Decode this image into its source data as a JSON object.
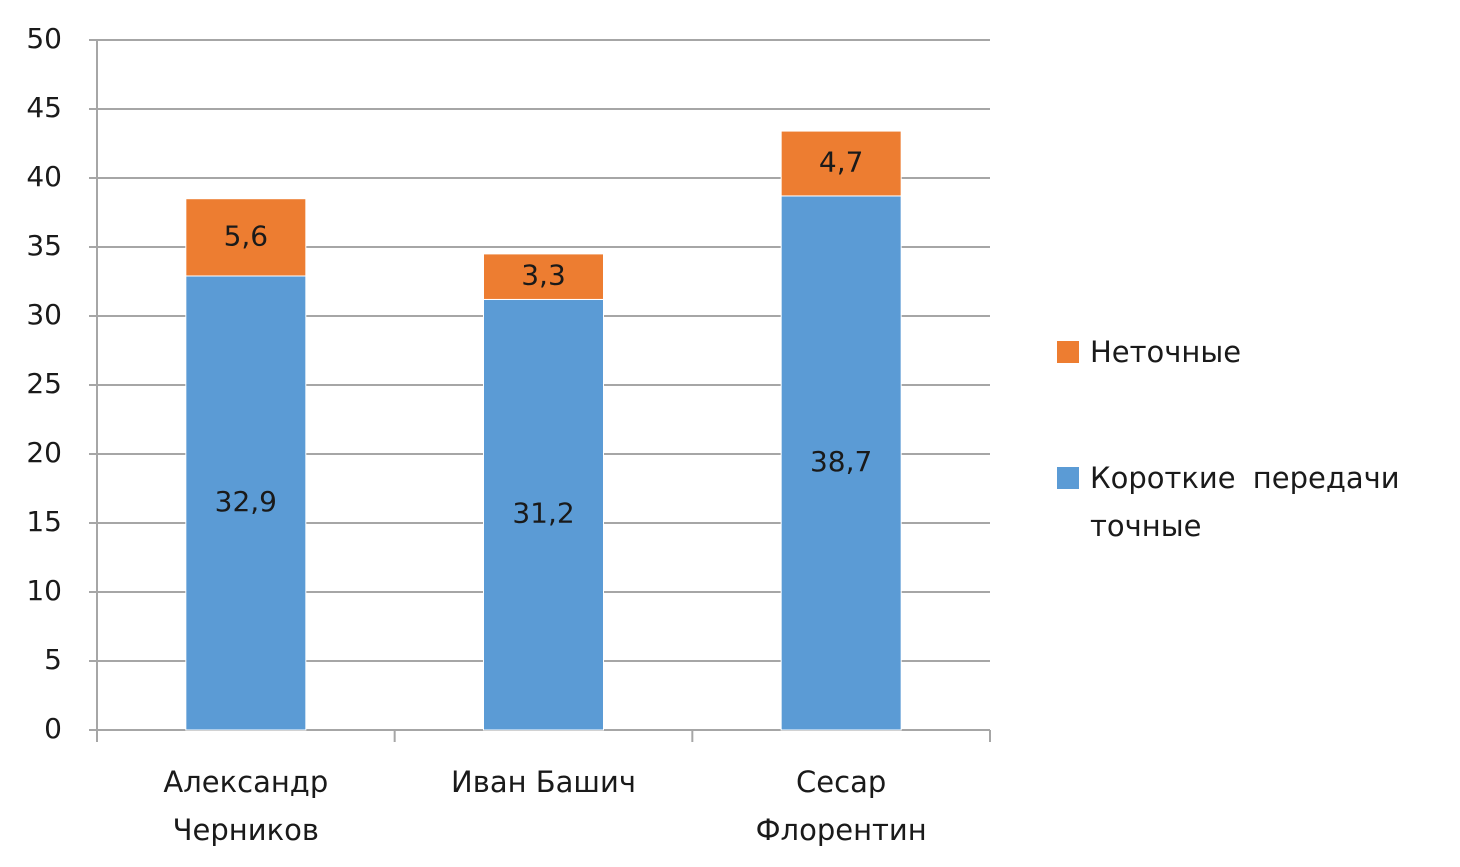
{
  "chart_data": {
    "type": "stacked_bar",
    "categories": [
      "Александр Черников",
      "Иван Башич",
      "Сесар Флорентин"
    ],
    "series": [
      {
        "name": "Короткие передачи точные",
        "color": "#5b9bd5",
        "values": [
          32.9,
          31.2,
          38.7
        ],
        "value_labels": [
          "32,9",
          "31,2",
          "38,7"
        ]
      },
      {
        "name": "Неточные",
        "color": "#ed7d31",
        "values": [
          5.6,
          3.3,
          4.7
        ],
        "value_labels": [
          "5,6",
          "3,3",
          "4,7"
        ]
      }
    ],
    "ylim": [
      0,
      50
    ],
    "yticks": [
      0,
      5,
      10,
      15,
      20,
      25,
      30,
      35,
      40,
      45,
      50
    ],
    "grid": true,
    "legend": "right"
  }
}
